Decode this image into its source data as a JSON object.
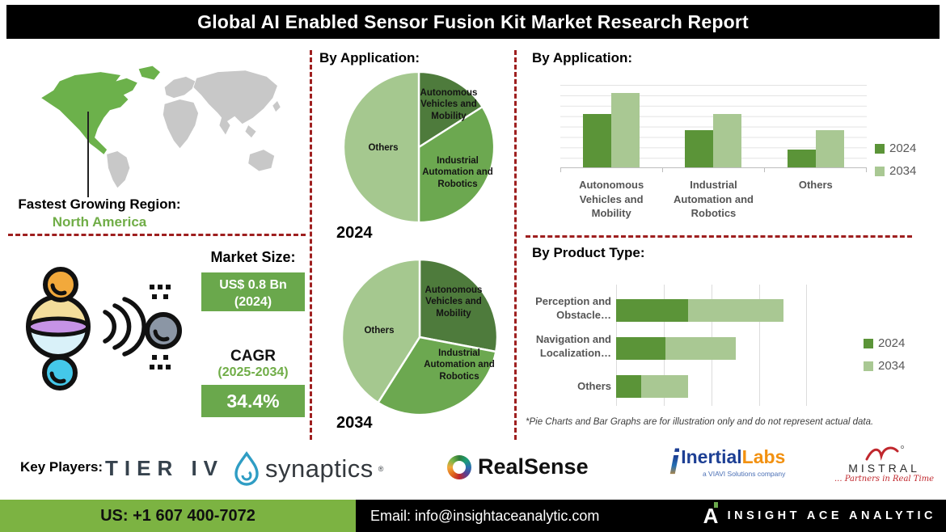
{
  "title": "Global AI Enabled Sensor Fusion Kit Market Research Report",
  "region": {
    "label": "Fastest Growing Region:",
    "value": "North America"
  },
  "market": {
    "size_label": "Market Size:",
    "size_value": "US$ 0.8 Bn",
    "size_year": "(2024)",
    "cagr_label": "CAGR",
    "cagr_period": "(2025-2034)",
    "cagr_value": "34.4%"
  },
  "colors": {
    "green_dark": "#5b9438",
    "green_light": "#a9c893",
    "box_green": "#6aa84c",
    "footer_green": "#7cb342",
    "accent_red": "#9e1f1f",
    "label_green": "#70ad47",
    "map_highlight": "#6cb14b",
    "map_base": "#c8c8c8"
  },
  "chart_data": [
    {
      "type": "pie",
      "title": "By Application:",
      "year_label": "2024",
      "slices": [
        {
          "label": "Autonomous Vehicles and Mobility",
          "value": 16,
          "color": "#4e7b3c"
        },
        {
          "label": "Industrial Automation and Robotics",
          "value": 34,
          "color": "#6ca850"
        },
        {
          "label": "Others",
          "value": 50,
          "color": "#a5c88f"
        }
      ]
    },
    {
      "type": "pie",
      "title": "By Application:",
      "year_label": "2034",
      "slices": [
        {
          "label": "Autonomous Vehicles and Mobility",
          "value": 28,
          "color": "#4e7b3c"
        },
        {
          "label": "Industrial Automation and Robotics",
          "value": 31,
          "color": "#6ca850"
        },
        {
          "label": "Others",
          "value": 41,
          "color": "#a5c88f"
        }
      ]
    },
    {
      "type": "bar",
      "title": "By Application:",
      "categories": [
        "Autonomous Vehicles and Mobility",
        "Industrial Automation and Robotics",
        "Others"
      ],
      "series": [
        {
          "name": "2024",
          "color": "#5b9438",
          "values": [
            0.65,
            0.45,
            0.22
          ]
        },
        {
          "name": "2034",
          "color": "#a9c893",
          "values": [
            0.9,
            0.65,
            0.45
          ]
        }
      ],
      "ylim": [
        0,
        1
      ],
      "grid": "horizontal",
      "legend_position": "right"
    },
    {
      "type": "stacked-horizontal-bar",
      "title": "By Product Type:",
      "categories": [
        "Perception and Obstacle…",
        "Navigation and Localization…",
        "Others"
      ],
      "series": [
        {
          "name": "2024",
          "color": "#5b9438",
          "values": [
            0.38,
            0.26,
            0.13
          ]
        },
        {
          "name": "2034",
          "color": "#a9c893",
          "values": [
            0.5,
            0.37,
            0.25
          ]
        }
      ],
      "xlim": [
        0,
        1
      ],
      "grid": "vertical",
      "legend_position": "right"
    }
  ],
  "footnote": "*Pie Charts and Bar Graphs are for illustration only and do not represent actual data.",
  "key_players": {
    "label": "Key Players:",
    "tier_iv": "TIER IV",
    "synaptics": "synaptics",
    "realsense": "RealSense",
    "inertial_part1": "Inertial",
    "inertial_part2": "Labs",
    "inertial_sub": "a VIAVI Solutions company",
    "mistral": "MISTRAL",
    "mistral_tagline": "... Partners in Real Time"
  },
  "footer": {
    "phone": "US: +1 607 400-7072",
    "email": "Email: info@insightaceanalytic.com",
    "brand": "INSIGHT ACE ANALYTIC"
  }
}
